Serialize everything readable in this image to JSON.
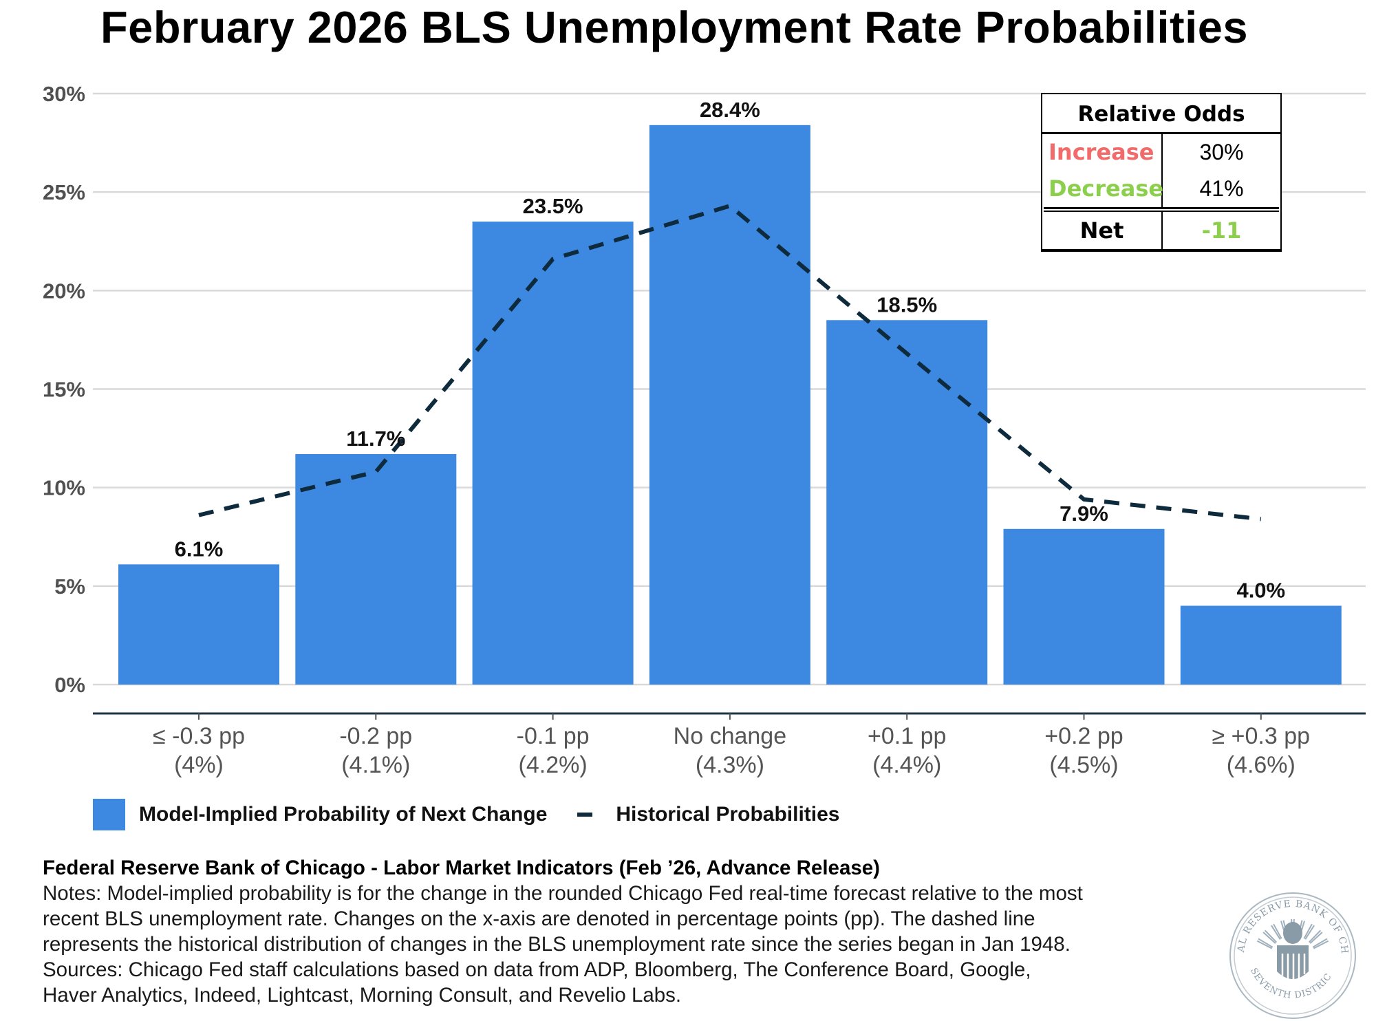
{
  "title": "February 2026 BLS Unemployment Rate Probabilities",
  "chart_data": {
    "type": "bar",
    "title": "February 2026 BLS Unemployment Rate Probabilities",
    "xlabel": "",
    "ylabel": "",
    "ylim": [
      0,
      30
    ],
    "yticks": [
      0,
      5,
      10,
      15,
      20,
      25,
      30
    ],
    "ytick_labels": [
      "0%",
      "5%",
      "10%",
      "15%",
      "20%",
      "25%",
      "30%"
    ],
    "grid": true,
    "categories": [
      {
        "line1": "≤ -0.3 pp",
        "line2": "(4%)"
      },
      {
        "line1": "-0.2 pp",
        "line2": "(4.1%)"
      },
      {
        "line1": "-0.1 pp",
        "line2": "(4.2%)"
      },
      {
        "line1": "No change",
        "line2": "(4.3%)"
      },
      {
        "line1": "+0.1 pp",
        "line2": "(4.4%)"
      },
      {
        "line1": "+0.2 pp",
        "line2": "(4.5%)"
      },
      {
        "line1": "≥ +0.3 pp",
        "line2": "(4.6%)"
      }
    ],
    "series": [
      {
        "name": "Model-Implied Probability of Next Change",
        "type": "bar",
        "color": "#3d88e0",
        "values": [
          6.1,
          11.7,
          23.5,
          28.4,
          18.5,
          7.9,
          4.0
        ],
        "data_labels": [
          "6.1%",
          "11.7%",
          "23.5%",
          "28.4%",
          "18.5%",
          "7.9%",
          "4.0%"
        ]
      },
      {
        "name": "Historical Probabilities",
        "type": "line",
        "style": "dashed",
        "color": "#0e2b3d",
        "values": [
          8.6,
          10.8,
          21.6,
          24.3,
          16.8,
          9.4,
          8.4
        ]
      }
    ],
    "legend_position": "bottom-left"
  },
  "relative_odds": {
    "header": "Relative Odds",
    "rows": [
      {
        "label": "Increase",
        "value": "30%",
        "color": "#f26b6b"
      },
      {
        "label": "Decrease",
        "value": "41%",
        "color": "#8ccf4d"
      }
    ],
    "net": {
      "label": "Net",
      "value": "-11",
      "color": "#8ccf4d"
    }
  },
  "footer": {
    "source": "Federal Reserve Bank of Chicago - Labor Market Indicators (Feb ’26, Advance Release)",
    "notes_lines": [
      "Notes: Model-implied probability is for the change in the rounded Chicago Fed real-time forecast relative to the most",
      "recent BLS unemployment rate. Changes on the x-axis are denoted in percentage points (pp). The dashed line",
      "represents the historical distribution of changes in the BLS unemployment rate since the series began in Jan 1948.",
      "Sources: Chicago Fed staff calculations based on data from ADP, Bloomberg, The Conference Board, Google,",
      "Haver Analytics, Indeed, Lightcast, Morning Consult, and Revelio Labs."
    ]
  },
  "seal": {
    "top_text": "FEDERAL RESERVE BANK OF CHICAGO",
    "bottom_text": "SEVENTH DISTRICT",
    "color": "#8a9ba8"
  }
}
